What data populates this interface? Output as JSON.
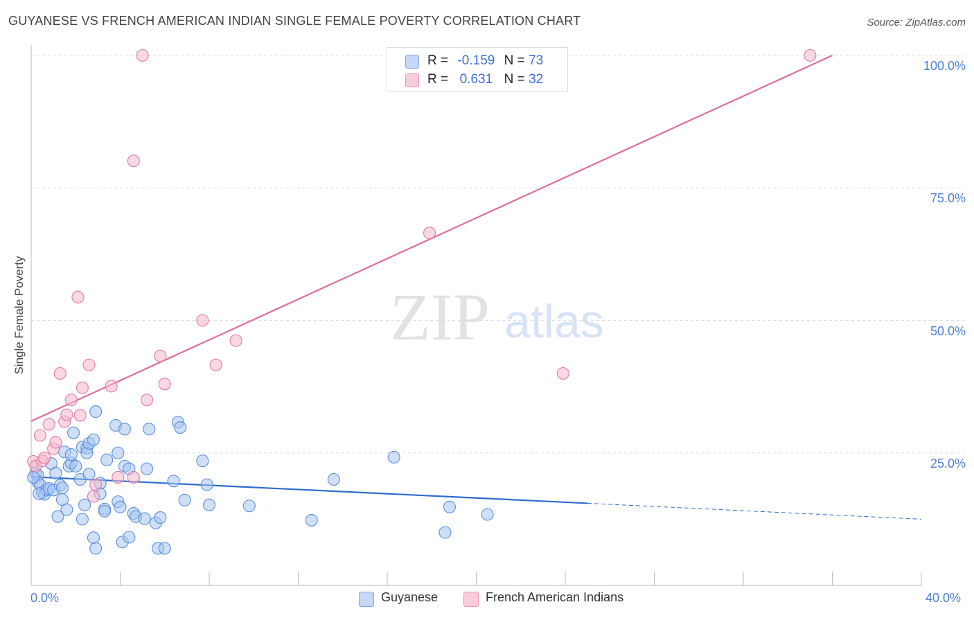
{
  "title": "GUYANESE VS FRENCH AMERICAN INDIAN SINGLE FEMALE POVERTY CORRELATION CHART",
  "source": "Source: ZipAtlas.com",
  "watermark": {
    "zip": "ZIP",
    "atlas": "atlas"
  },
  "legend": {
    "r_label": "R =",
    "n_label": "N =",
    "items": [
      {
        "r": "-0.159",
        "n": "73",
        "color": "#a8c5f0"
      },
      {
        "r": "0.631",
        "n": "32",
        "color": "#f5b8cb"
      }
    ]
  },
  "bottom_legend": [
    "Guyanese",
    "French American Indians"
  ],
  "chart_data": {
    "type": "scatter",
    "ylabel": "Single Female Poverty",
    "xlabel": "",
    "xlim": [
      0,
      40
    ],
    "ylim": [
      0,
      100
    ],
    "x_tick_labels": [
      "0.0%",
      "40.0%"
    ],
    "y_ticks": [
      25,
      50,
      75,
      100
    ],
    "y_tick_labels": [
      "25.0%",
      "50.0%",
      "75.0%",
      "100.0%"
    ],
    "grid": true,
    "legend_position": "top-center",
    "series": [
      {
        "name": "Guyanese",
        "color": "#5b8fe0",
        "fill": "#a8c5f0",
        "trend": {
          "x": [
            0,
            25,
            40
          ],
          "y": [
            20.5,
            15.5,
            12.5
          ],
          "solid_to": 25
        },
        "points": [
          [
            0.2,
            21.2
          ],
          [
            0.3,
            20.8
          ],
          [
            0.3,
            19.5
          ],
          [
            0.4,
            19
          ],
          [
            0.5,
            17.5
          ],
          [
            0.6,
            17.2
          ],
          [
            0.7,
            18
          ],
          [
            0.8,
            18.3
          ],
          [
            0.9,
            23
          ],
          [
            1,
            18
          ],
          [
            1.1,
            21.2
          ],
          [
            1.2,
            13
          ],
          [
            1.3,
            18.9
          ],
          [
            1.4,
            16.2
          ],
          [
            1.4,
            18.4
          ],
          [
            1.5,
            25.2
          ],
          [
            1.6,
            14.3
          ],
          [
            1.7,
            22.5
          ],
          [
            1.8,
            23.1
          ],
          [
            1.8,
            24.7
          ],
          [
            1.9,
            28.8
          ],
          [
            2,
            22.5
          ],
          [
            2.2,
            20
          ],
          [
            2.3,
            26.1
          ],
          [
            2.3,
            12.5
          ],
          [
            2.4,
            15.2
          ],
          [
            2.5,
            25.9
          ],
          [
            2.5,
            25
          ],
          [
            2.6,
            21
          ],
          [
            2.6,
            26.8
          ],
          [
            2.8,
            9
          ],
          [
            2.8,
            27.5
          ],
          [
            2.9,
            32.8
          ],
          [
            2.9,
            7
          ],
          [
            3.1,
            19.3
          ],
          [
            3.1,
            17.3
          ],
          [
            3.3,
            14.4
          ],
          [
            3.3,
            14
          ],
          [
            3.4,
            23.7
          ],
          [
            3.8,
            30.2
          ],
          [
            3.9,
            15.8
          ],
          [
            3.9,
            25
          ],
          [
            4,
            14.8
          ],
          [
            4.1,
            8.2
          ],
          [
            4.2,
            22.5
          ],
          [
            4.2,
            29.5
          ],
          [
            4.4,
            22
          ],
          [
            4.4,
            9.1
          ],
          [
            4.6,
            13.6
          ],
          [
            4.7,
            13
          ],
          [
            5.1,
            12.6
          ],
          [
            5.2,
            22
          ],
          [
            5.3,
            29.5
          ],
          [
            5.6,
            11.8
          ],
          [
            5.7,
            7
          ],
          [
            5.8,
            12.8
          ],
          [
            6,
            7
          ],
          [
            6.4,
            19.7
          ],
          [
            6.6,
            30.8
          ],
          [
            6.7,
            29.8
          ],
          [
            6.9,
            16.1
          ],
          [
            7.7,
            23.5
          ],
          [
            7.9,
            19
          ],
          [
            8,
            15.2
          ],
          [
            9.8,
            15
          ],
          [
            12.6,
            12.3
          ],
          [
            13.6,
            20
          ],
          [
            16.3,
            24.2
          ],
          [
            18.8,
            14.8
          ],
          [
            20.5,
            13.4
          ],
          [
            0.1,
            20.4
          ],
          [
            0.35,
            17.3
          ],
          [
            18.6,
            10
          ]
        ]
      },
      {
        "name": "French American Indians",
        "color": "#e07a9f",
        "fill": "#f5b8cb",
        "trend": {
          "x": [
            0,
            36
          ],
          "y": [
            31,
            100
          ]
        },
        "points": [
          [
            0.1,
            23.4
          ],
          [
            0.2,
            22.5
          ],
          [
            0.4,
            28.3
          ],
          [
            0.5,
            23.5
          ],
          [
            0.6,
            24.1
          ],
          [
            0.8,
            30.4
          ],
          [
            1,
            25.8
          ],
          [
            1.1,
            27
          ],
          [
            1.3,
            40
          ],
          [
            1.5,
            30.9
          ],
          [
            1.6,
            32.2
          ],
          [
            1.8,
            35
          ],
          [
            2.2,
            32.1
          ],
          [
            2.3,
            37.3
          ],
          [
            2.6,
            41.6
          ],
          [
            2.9,
            19
          ],
          [
            2.8,
            16.8
          ],
          [
            3.6,
            37.6
          ],
          [
            3.9,
            20.4
          ],
          [
            4.6,
            80.1
          ],
          [
            4.6,
            20.4
          ],
          [
            5,
            100
          ],
          [
            5.2,
            35
          ],
          [
            5.8,
            43.3
          ],
          [
            6,
            38
          ],
          [
            7.7,
            50
          ],
          [
            8.3,
            41.6
          ],
          [
            9.2,
            46.2
          ],
          [
            2.1,
            54.4
          ],
          [
            17.9,
            66.5
          ],
          [
            23.9,
            40
          ],
          [
            35,
            100
          ]
        ]
      }
    ]
  }
}
